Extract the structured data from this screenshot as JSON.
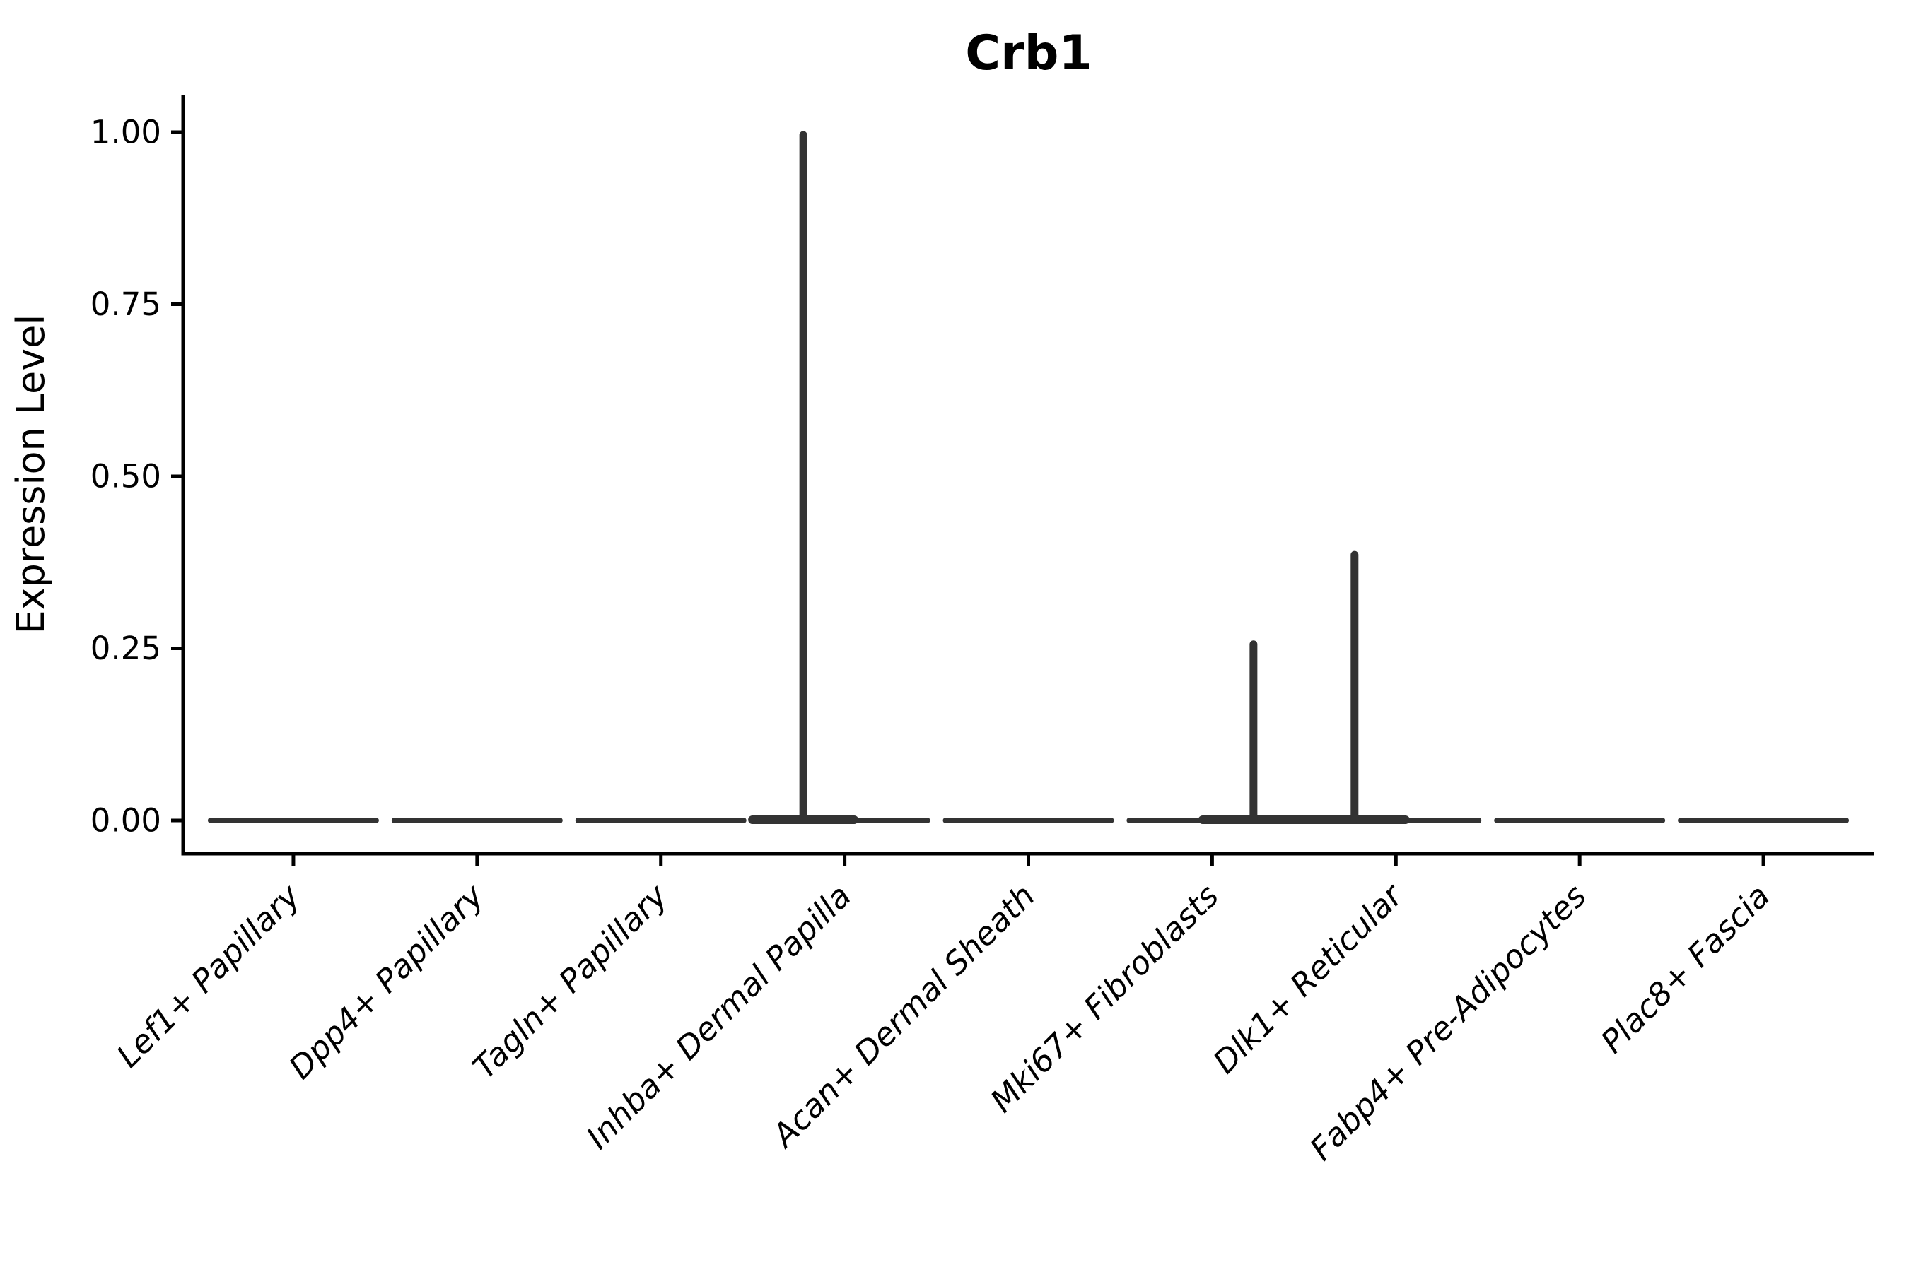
{
  "figure": {
    "background_color": "#ffffff"
  },
  "chart_data": {
    "type": "violin",
    "title": "Crb1",
    "xlabel": "",
    "ylabel": "Expression Level",
    "grid": false,
    "legend_position": "none",
    "ylim": [
      -0.05,
      1.05
    ],
    "ytick_values": [
      0.0,
      0.25,
      0.5,
      0.75,
      1.0
    ],
    "ytick_labels": [
      "0.00",
      "0.25",
      "0.50",
      "0.75",
      "1.00"
    ],
    "categories": [
      "Lef1+ Papillary",
      "Dpp4+ Papillary",
      "Tagln+ Papillary",
      "Inhba+ Dermal Papilla",
      "Acan+ Dermal Sheath",
      "Mki67+ Fibroblasts",
      "Dlk1+ Reticular",
      "Fabp4+ Pre-Adipocytes",
      "Plac8+ Fascia"
    ],
    "violins": [
      {
        "category": "Lef1+ Papillary",
        "base_value": 0.0,
        "spike": null
      },
      {
        "category": "Dpp4+ Papillary",
        "base_value": 0.0,
        "spike": null
      },
      {
        "category": "Tagln+ Papillary",
        "base_value": 0.0,
        "spike": null
      },
      {
        "category": "Inhba+ Dermal Papilla",
        "base_value": 0.0,
        "spike": {
          "value": 1.0,
          "side": "left"
        }
      },
      {
        "category": "Acan+ Dermal Sheath",
        "base_value": 0.0,
        "spike": null
      },
      {
        "category": "Mki67+ Fibroblasts",
        "base_value": 0.0,
        "spike": {
          "value": 0.26,
          "side": "right"
        }
      },
      {
        "category": "Dlk1+ Reticular",
        "base_value": 0.0,
        "spike": {
          "value": 0.39,
          "side": "left"
        }
      },
      {
        "category": "Fabp4+ Pre-Adipocytes",
        "base_value": 0.0,
        "spike": null
      },
      {
        "category": "Plac8+ Fascia",
        "base_value": 0.0,
        "spike": null
      }
    ],
    "colors": {
      "violin_stroke": "#333333",
      "axis": "#000000",
      "text": "#000000",
      "background": "#ffffff"
    }
  }
}
